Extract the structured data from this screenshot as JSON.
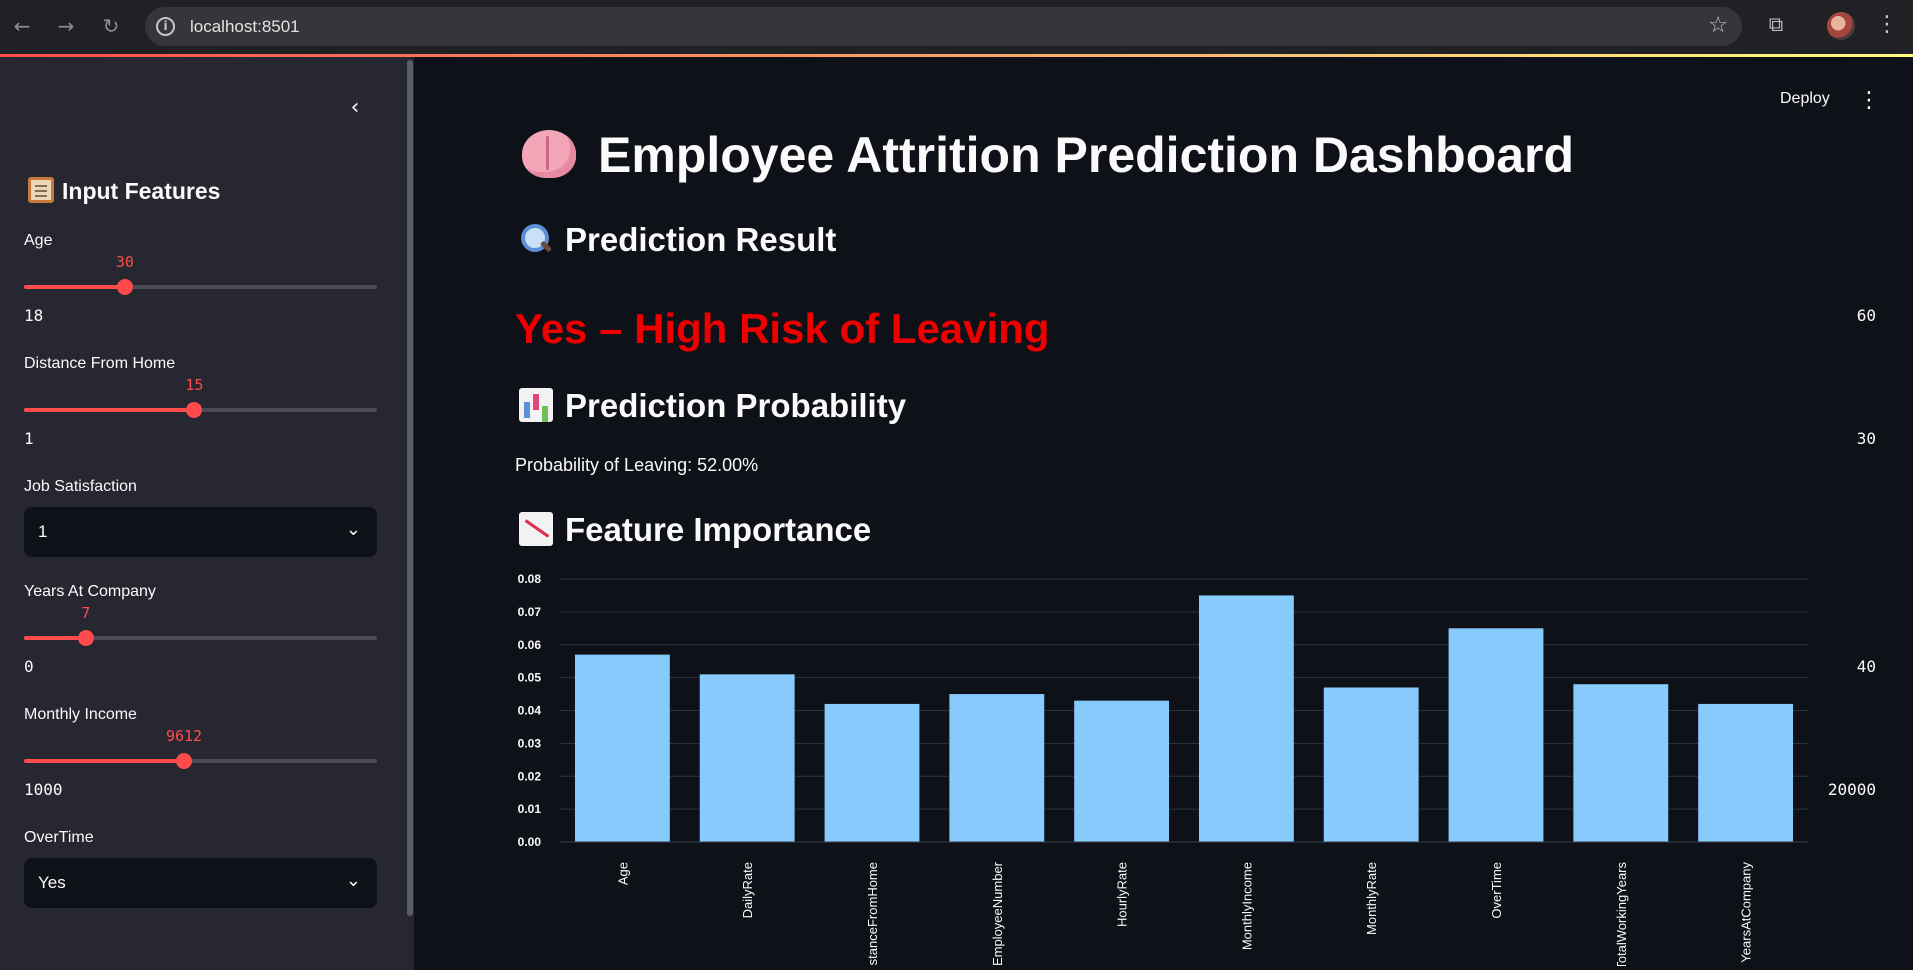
{
  "browser": {
    "url": "localhost:8501"
  },
  "sidebar": {
    "title": "Input Features",
    "title_icon": "clipboard-icon",
    "age": {
      "label": "Age",
      "value": "30",
      "min": "18",
      "max": "60",
      "fraction": 0.2857
    },
    "distance": {
      "label": "Distance From Home",
      "value": "15",
      "min": "1",
      "max": "30",
      "fraction": 0.4828
    },
    "job_satisfaction": {
      "label": "Job Satisfaction",
      "value": "1"
    },
    "years_at_company": {
      "label": "Years At Company",
      "value": "7",
      "min": "0",
      "max": "40",
      "fraction": 0.175
    },
    "monthly_income": {
      "label": "Monthly Income",
      "value": "9612",
      "min": "1000",
      "max": "20000",
      "fraction": 0.4533
    },
    "overtime": {
      "label": "OverTime",
      "value": "Yes"
    }
  },
  "header": {
    "deploy_label": "Deploy"
  },
  "main": {
    "title": "Employee Attrition Prediction Dashboard",
    "result_heading": "Prediction Result",
    "result_text": "Yes – High Risk of Leaving",
    "probability_heading": "Prediction Probability",
    "probability_text": "Probability of Leaving: 52.00%",
    "importance_heading": "Feature Importance"
  },
  "colors": {
    "accent": "#ff4b4b",
    "risk": "#ef0000",
    "bar": "#87cafc"
  },
  "chart_data": {
    "type": "bar",
    "categories": [
      "Age",
      "DailyRate",
      "DistanceFromHome",
      "EmployeeNumber",
      "HourlyRate",
      "MonthlyIncome",
      "MonthlyRate",
      "OverTime",
      "TotalWorkingYears",
      "YearsAtCompany"
    ],
    "values": [
      0.057,
      0.051,
      0.042,
      0.045,
      0.043,
      0.075,
      0.047,
      0.065,
      0.048,
      0.042
    ],
    "yticks": [
      "0.00",
      "0.01",
      "0.02",
      "0.03",
      "0.04",
      "0.05",
      "0.06",
      "0.07",
      "0.08"
    ],
    "ylim": [
      0,
      0.08
    ],
    "grid": true
  }
}
